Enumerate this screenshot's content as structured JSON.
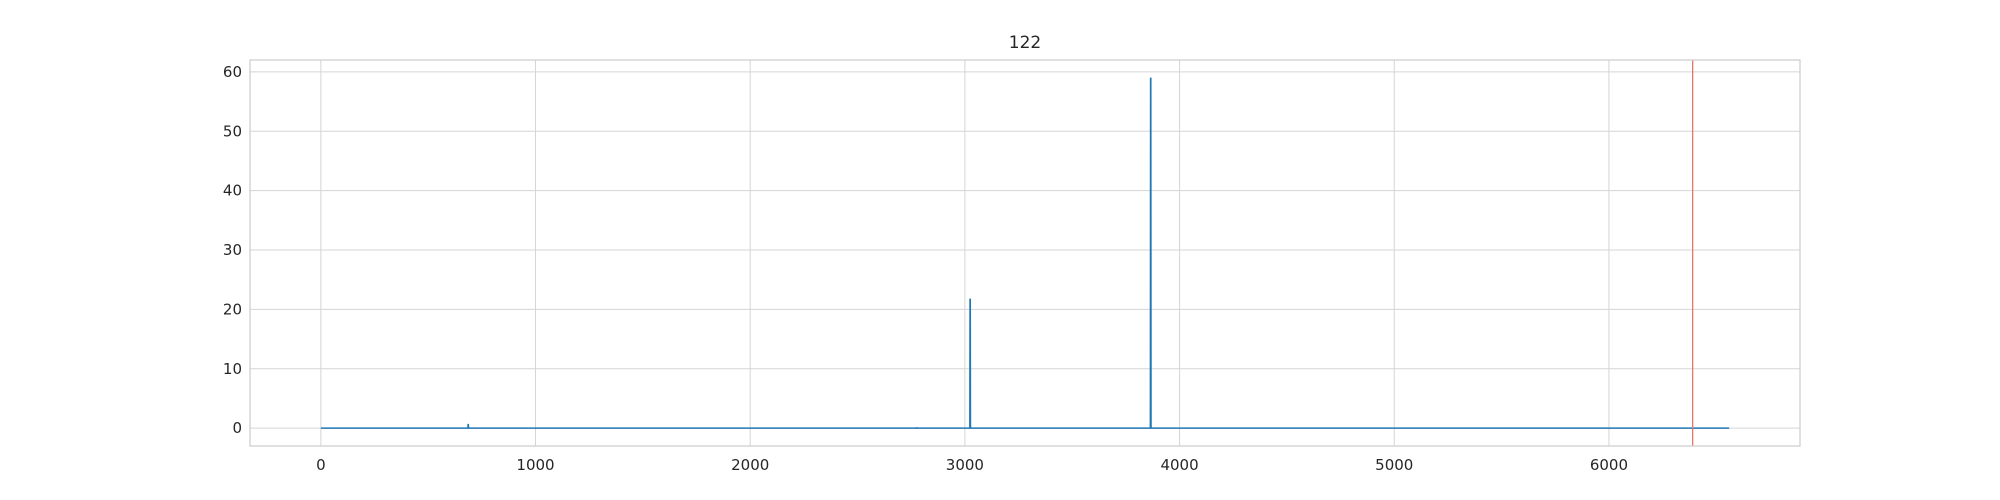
{
  "chart_data": {
    "type": "line",
    "title": "122",
    "xlabel": "",
    "ylabel": "",
    "xlim": [
      -330,
      6890
    ],
    "ylim": [
      -3,
      62
    ],
    "xticks": [
      0,
      1000,
      2000,
      3000,
      4000,
      5000,
      6000
    ],
    "yticks": [
      0,
      10,
      20,
      30,
      40,
      50,
      60
    ],
    "grid": true,
    "legend": "none",
    "colors": {
      "series": "#1f77b4",
      "vline": "#e8736f",
      "grid": "#d5d5d5",
      "frame": "#cccccc"
    },
    "series": [
      {
        "color": "#1f77b4",
        "x": [
          0,
          685,
          686,
          687,
          688,
          689,
          2775,
          2776,
          2777,
          3022,
          3023,
          3024,
          3025,
          3026,
          3027,
          3028,
          3864,
          3865,
          3866,
          3867,
          3868,
          3869,
          3870,
          6560
        ],
        "y": [
          0,
          0,
          0.6,
          0.6,
          0,
          0,
          0,
          0.15,
          0,
          0,
          0,
          21.7,
          21.7,
          0,
          0,
          0,
          0,
          58.9,
          58.9,
          0,
          0,
          0,
          0,
          0
        ]
      }
    ],
    "vlines": [
      {
        "x": 6390,
        "color": "#e8736f"
      }
    ]
  }
}
